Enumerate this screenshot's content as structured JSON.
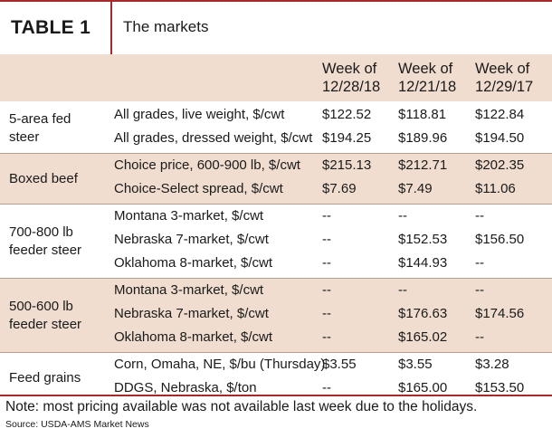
{
  "table": {
    "label": "TABLE 1",
    "title": "The markets",
    "columns": [
      "Week of 12/28/18",
      "Week of 12/21/18",
      "Week of 12/29/17"
    ],
    "columns_lines": [
      [
        "Week of",
        "12/28/18"
      ],
      [
        "Week of",
        "12/21/18"
      ],
      [
        "Week of",
        "12/29/17"
      ]
    ],
    "groups": [
      {
        "category_lines": [
          "5-area fed",
          "steer"
        ],
        "rows": [
          {
            "item": "All grades, live weight, $/cwt",
            "values": [
              "$122.52",
              "$118.81",
              "$122.84"
            ]
          },
          {
            "item": "All grades, dressed weight, $/cwt",
            "values": [
              "$194.25",
              "$189.96",
              "$194.50"
            ]
          }
        ]
      },
      {
        "category_lines": [
          "Boxed beef"
        ],
        "rows": [
          {
            "item": "Choice price, 600-900 lb, $/cwt",
            "values": [
              "$215.13",
              "$212.71",
              "$202.35"
            ]
          },
          {
            "item": "Choice-Select spread, $/cwt",
            "values": [
              "$7.69",
              "$7.49",
              "$11.06"
            ]
          }
        ]
      },
      {
        "category_lines": [
          "700-800 lb",
          "feeder steer"
        ],
        "rows": [
          {
            "item": "Montana 3-market, $/cwt",
            "values": [
              "--",
              "--",
              "--"
            ]
          },
          {
            "item": "Nebraska 7-market, $/cwt",
            "values": [
              "--",
              "$152.53",
              "$156.50"
            ]
          },
          {
            "item": "Oklahoma 8-market, $/cwt",
            "values": [
              "--",
              "$144.93",
              "--"
            ]
          }
        ]
      },
      {
        "category_lines": [
          "500-600 lb",
          "feeder steer"
        ],
        "rows": [
          {
            "item": "Montana 3-market, $/cwt",
            "values": [
              "--",
              "--",
              "--"
            ]
          },
          {
            "item": "Nebraska 7-market, $/cwt",
            "values": [
              "--",
              "$176.63",
              "$174.56"
            ]
          },
          {
            "item": "Oklahoma 8-market, $/cwt",
            "values": [
              "--",
              "$165.02",
              "--"
            ]
          }
        ]
      },
      {
        "category_lines": [
          "Feed grains"
        ],
        "rows": [
          {
            "item": "Corn, Omaha, NE, $/bu (Thursday)",
            "values": [
              "$3.55",
              "$3.55",
              "$3.28"
            ]
          },
          {
            "item": "DDGS, Nebraska, $/ton",
            "values": [
              "--",
              "$165.00",
              "$153.50"
            ]
          }
        ]
      }
    ],
    "note": "Note: most pricing available was not available last week due to the holidays.",
    "source": "Source: USDA-AMS Market News",
    "colors": {
      "accent": "#a52a2a",
      "band": "#f0ddd0"
    }
  }
}
